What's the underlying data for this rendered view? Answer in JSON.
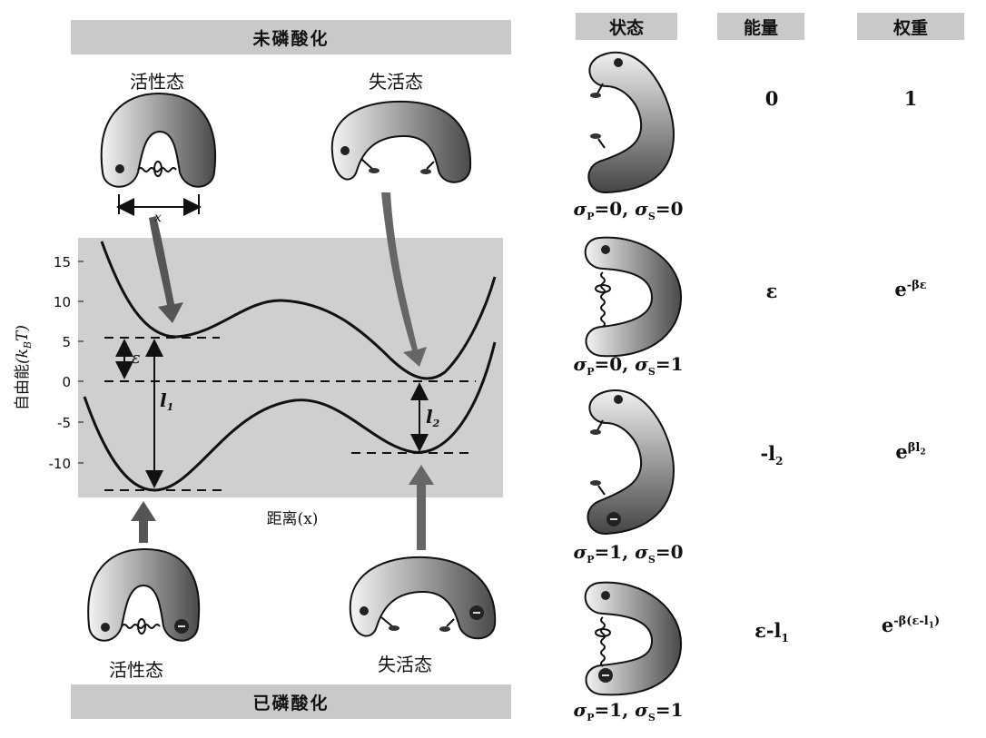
{
  "left": {
    "top_banner": "未磷酸化",
    "bottom_banner": "已磷酸化",
    "top_active_label": "活性态",
    "top_inactive_label": "失活态",
    "bottom_active_label": "活性态",
    "bottom_inactive_label": "失活态",
    "distance_symbol": "x",
    "plot": {
      "ylabel_cn": "自由能",
      "ylabel_unit": "(k",
      "ylabel_sub": "B",
      "ylabel_T": "T)",
      "xlabel": "距离(x)",
      "yticks": [
        "15",
        "10",
        "5",
        "0",
        "-5",
        "-10"
      ],
      "epsilon_label": "ε",
      "l1_label": "l",
      "l1_sub": "1",
      "l2_label": "l",
      "l2_sub": "2"
    }
  },
  "table": {
    "headers": [
      "状态",
      "能量",
      "权重"
    ],
    "rows": [
      {
        "sigma": "σP=0, σS=0",
        "sigma_p": "0",
        "sigma_s": "0",
        "energy": "0",
        "weight": "1"
      },
      {
        "sigma": "σP=0, σS=1",
        "sigma_p": "0",
        "sigma_s": "1",
        "energy": "ε",
        "weight": "e^{-βε}"
      },
      {
        "sigma": "σP=1, σS=0",
        "sigma_p": "1",
        "sigma_s": "0",
        "energy": "-l2",
        "weight": "e^{βl2}"
      },
      {
        "sigma": "σP=1, σS=1",
        "sigma_p": "1",
        "sigma_s": "1",
        "energy": "ε-l1",
        "weight": "e^{-β(ε-l1)}"
      }
    ],
    "weight_parts": {
      "w2_sup": "-βε",
      "w3_sup": "βl",
      "w3_sup_sub": "2",
      "w4_sup": "-β(ε-l",
      "w4_sup_sub": "1",
      "w4_sup_end": ")"
    },
    "energy_parts": {
      "e3_main": "-l",
      "e3_sub": "2",
      "e4_main": "ε-l",
      "e4_sub": "1"
    }
  }
}
